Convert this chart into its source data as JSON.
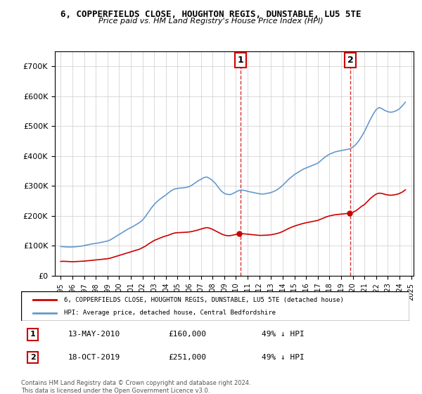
{
  "title": "6, COPPERFIELDS CLOSE, HOUGHTON REGIS, DUNSTABLE, LU5 5TE",
  "subtitle": "Price paid vs. HM Land Registry's House Price Index (HPI)",
  "legend_red": "6, COPPERFIELDS CLOSE, HOUGHTON REGIS, DUNSTABLE, LU5 5TE (detached house)",
  "legend_blue": "HPI: Average price, detached house, Central Bedfordshire",
  "annotation1_date": "13-MAY-2010",
  "annotation1_price": "£160,000",
  "annotation1_hpi": "49% ↓ HPI",
  "annotation2_date": "18-OCT-2019",
  "annotation2_price": "£251,000",
  "annotation2_hpi": "49% ↓ HPI",
  "footnote": "Contains HM Land Registry data © Crown copyright and database right 2024.\nThis data is licensed under the Open Government Licence v3.0.",
  "sale1_year": 2010.37,
  "sale1_value": 160000,
  "sale2_year": 2019.79,
  "sale2_value": 251000,
  "red_color": "#cc0000",
  "blue_color": "#6699cc",
  "vline_color": "#cc0000",
  "bg_color": "#ffffff",
  "grid_color": "#cccccc",
  "ylim_max": 750000,
  "hpi_years": [
    1995.0,
    1995.25,
    1995.5,
    1995.75,
    1996.0,
    1996.25,
    1996.5,
    1996.75,
    1997.0,
    1997.25,
    1997.5,
    1997.75,
    1998.0,
    1998.25,
    1998.5,
    1998.75,
    1999.0,
    1999.25,
    1999.5,
    1999.75,
    2000.0,
    2000.25,
    2000.5,
    2000.75,
    2001.0,
    2001.25,
    2001.5,
    2001.75,
    2002.0,
    2002.25,
    2002.5,
    2002.75,
    2003.0,
    2003.25,
    2003.5,
    2003.75,
    2004.0,
    2004.25,
    2004.5,
    2004.75,
    2005.0,
    2005.25,
    2005.5,
    2005.75,
    2006.0,
    2006.25,
    2006.5,
    2006.75,
    2007.0,
    2007.25,
    2007.5,
    2007.75,
    2008.0,
    2008.25,
    2008.5,
    2008.75,
    2009.0,
    2009.25,
    2009.5,
    2009.75,
    2010.0,
    2010.25,
    2010.5,
    2010.75,
    2011.0,
    2011.25,
    2011.5,
    2011.75,
    2012.0,
    2012.25,
    2012.5,
    2012.75,
    2013.0,
    2013.25,
    2013.5,
    2013.75,
    2014.0,
    2014.25,
    2014.5,
    2014.75,
    2015.0,
    2015.25,
    2015.5,
    2015.75,
    2016.0,
    2016.25,
    2016.5,
    2016.75,
    2017.0,
    2017.25,
    2017.5,
    2017.75,
    2018.0,
    2018.25,
    2018.5,
    2018.75,
    2019.0,
    2019.25,
    2019.5,
    2019.75,
    2020.0,
    2020.25,
    2020.5,
    2020.75,
    2021.0,
    2021.25,
    2021.5,
    2021.75,
    2022.0,
    2022.25,
    2022.5,
    2022.75,
    2023.0,
    2023.25,
    2023.5,
    2023.75,
    2024.0,
    2024.25,
    2024.5
  ],
  "hpi_values": [
    98000,
    97000,
    96500,
    96000,
    96500,
    97000,
    98000,
    99000,
    101000,
    103000,
    105000,
    107000,
    108000,
    110000,
    112000,
    114000,
    116000,
    120000,
    126000,
    132000,
    138000,
    144000,
    150000,
    156000,
    161000,
    166000,
    172000,
    178000,
    186000,
    198000,
    212000,
    226000,
    238000,
    248000,
    256000,
    263000,
    270000,
    278000,
    285000,
    290000,
    292000,
    293000,
    294000,
    295000,
    298000,
    303000,
    310000,
    317000,
    322000,
    328000,
    330000,
    325000,
    318000,
    308000,
    295000,
    283000,
    275000,
    272000,
    271000,
    275000,
    280000,
    285000,
    286000,
    285000,
    282000,
    280000,
    278000,
    276000,
    274000,
    273000,
    274000,
    276000,
    278000,
    282000,
    287000,
    294000,
    302000,
    312000,
    322000,
    330000,
    338000,
    344000,
    350000,
    356000,
    360000,
    364000,
    368000,
    372000,
    376000,
    384000,
    393000,
    400000,
    406000,
    410000,
    414000,
    416000,
    418000,
    420000,
    422000,
    424000,
    430000,
    438000,
    450000,
    465000,
    482000,
    502000,
    522000,
    540000,
    555000,
    562000,
    558000,
    552000,
    548000,
    546000,
    548000,
    552000,
    558000,
    568000,
    580000
  ],
  "red_years": [
    1995.0,
    1995.25,
    1995.5,
    1995.75,
    1996.0,
    1996.25,
    1996.5,
    1996.75,
    1997.0,
    1997.25,
    1997.5,
    1997.75,
    1998.0,
    1998.25,
    1998.5,
    1998.75,
    1999.0,
    1999.25,
    1999.5,
    1999.75,
    2000.0,
    2000.25,
    2000.5,
    2000.75,
    2001.0,
    2001.25,
    2001.5,
    2001.75,
    2002.0,
    2002.25,
    2002.5,
    2002.75,
    2003.0,
    2003.25,
    2003.5,
    2003.75,
    2004.0,
    2004.25,
    2004.5,
    2004.75,
    2005.0,
    2005.25,
    2005.5,
    2005.75,
    2006.0,
    2006.25,
    2006.5,
    2006.75,
    2007.0,
    2007.25,
    2007.5,
    2007.75,
    2008.0,
    2008.25,
    2008.5,
    2008.75,
    2009.0,
    2009.25,
    2009.5,
    2009.75,
    2010.0,
    2010.25,
    2010.5,
    2010.75,
    2011.0,
    2011.25,
    2011.5,
    2011.75,
    2012.0,
    2012.25,
    2012.5,
    2012.75,
    2013.0,
    2013.25,
    2013.5,
    2013.75,
    2014.0,
    2014.25,
    2014.5,
    2014.75,
    2015.0,
    2015.25,
    2015.5,
    2015.75,
    2016.0,
    2016.25,
    2016.5,
    2016.75,
    2017.0,
    2017.25,
    2017.5,
    2017.75,
    2018.0,
    2018.25,
    2018.5,
    2018.75,
    2019.0,
    2019.25,
    2019.5,
    2019.75,
    2020.0,
    2020.25,
    2020.5,
    2020.75,
    2021.0,
    2021.25,
    2021.5,
    2021.75,
    2022.0,
    2022.25,
    2022.5,
    2022.75,
    2023.0,
    2023.25,
    2023.5,
    2023.75,
    2024.0,
    2024.25,
    2024.5
  ],
  "red_values": [
    48000,
    48500,
    48000,
    47500,
    47000,
    47500,
    48000,
    48500,
    49000,
    50000,
    51000,
    52000,
    53000,
    54000,
    55000,
    56000,
    57000,
    59000,
    62000,
    65000,
    68000,
    71000,
    74000,
    77000,
    80000,
    83000,
    86000,
    89000,
    94000,
    99000,
    106000,
    112000,
    118000,
    122000,
    126000,
    130000,
    133000,
    136000,
    140000,
    143000,
    144000,
    144500,
    145000,
    145500,
    146500,
    148000,
    150500,
    153000,
    156000,
    159000,
    161000,
    159000,
    155000,
    150000,
    145000,
    140000,
    136000,
    134000,
    134000,
    136000,
    138000,
    140000,
    141000,
    140000,
    139000,
    138000,
    137000,
    136000,
    135000,
    135000,
    135500,
    136000,
    137000,
    139000,
    141000,
    144000,
    148000,
    153000,
    158000,
    162000,
    166000,
    169000,
    172000,
    175000,
    177000,
    179000,
    181000,
    183000,
    185000,
    189000,
    193000,
    197000,
    200000,
    202000,
    204000,
    205000,
    206000,
    207000,
    208000,
    209000,
    212000,
    217000,
    224000,
    232000,
    238000,
    248000,
    258000,
    266000,
    273000,
    276000,
    275000,
    272000,
    270000,
    269000,
    270000,
    272000,
    275000,
    280000,
    287000
  ]
}
